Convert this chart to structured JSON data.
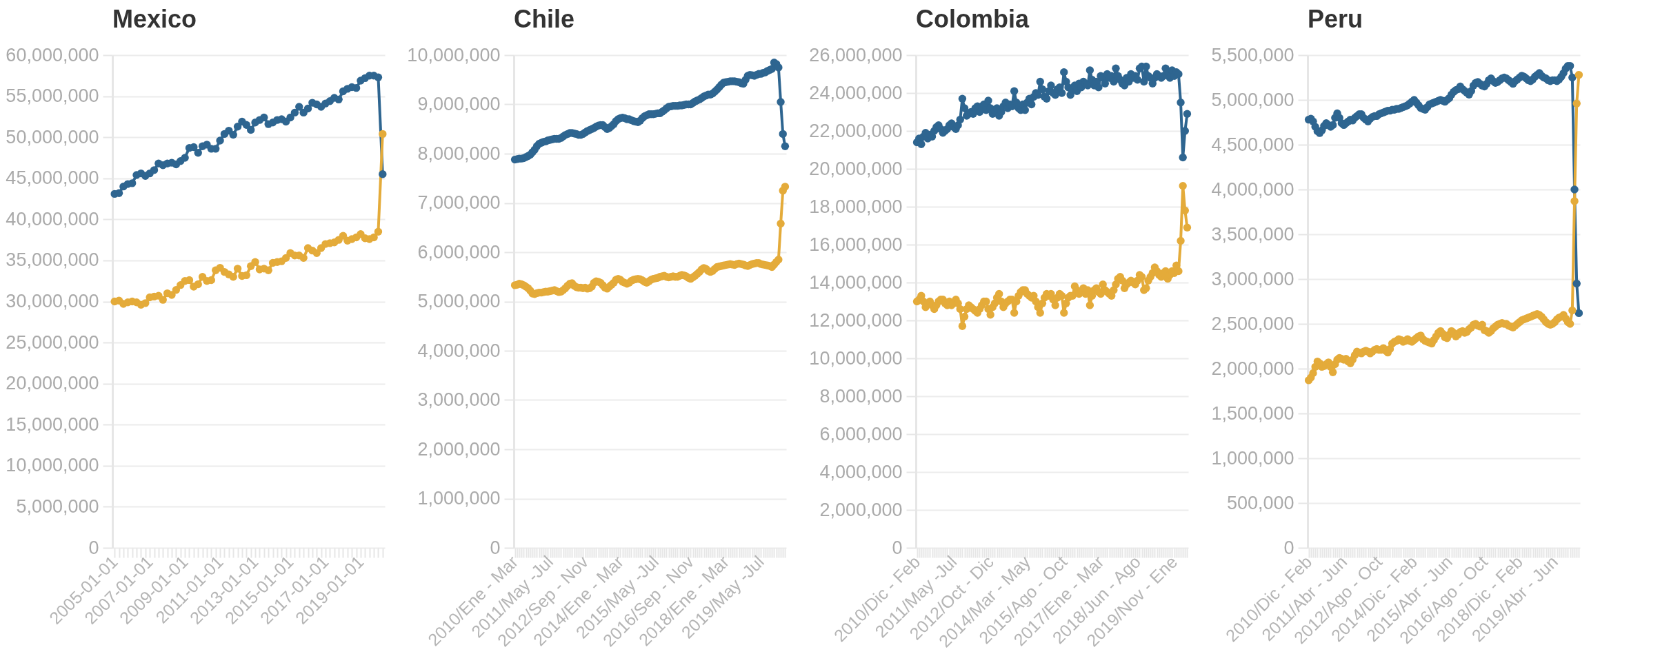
{
  "chart_data": [
    {
      "type": "line",
      "title": "Mexico",
      "marker": "circle",
      "grid": "y",
      "ylim": [
        0,
        60000000
      ],
      "yticks": [
        {
          "value": 0,
          "label": "0"
        },
        {
          "value": 5000000,
          "label": "5,000,000"
        },
        {
          "value": 10000000,
          "label": "10,000,000"
        },
        {
          "value": 15000000,
          "label": "15,000,000"
        },
        {
          "value": 20000000,
          "label": "20,000,000"
        },
        {
          "value": 25000000,
          "label": "25,000,000"
        },
        {
          "value": 30000000,
          "label": "30,000,000"
        },
        {
          "value": 35000000,
          "label": "35,000,000"
        },
        {
          "value": 40000000,
          "label": "40,000,000"
        },
        {
          "value": 45000000,
          "label": "45,000,000"
        },
        {
          "value": 50000000,
          "label": "50,000,000"
        },
        {
          "value": 55000000,
          "label": "55,000,000"
        },
        {
          "value": 60000000,
          "label": "60,000,000"
        }
      ],
      "categories": [
        "2005-01-01",
        null,
        null,
        null,
        null,
        null,
        null,
        null,
        "2007-01-01",
        null,
        null,
        null,
        null,
        null,
        null,
        null,
        "2009-01-01",
        null,
        null,
        null,
        null,
        null,
        null,
        null,
        "2011-01-01",
        null,
        null,
        null,
        null,
        null,
        null,
        null,
        "2013-01-01",
        null,
        null,
        null,
        null,
        null,
        null,
        null,
        "2015-01-01",
        null,
        null,
        null,
        null,
        null,
        null,
        null,
        "2017-01-01",
        null,
        null,
        null,
        null,
        null,
        null,
        null,
        "2019-01-01",
        null,
        null,
        null,
        null,
        null
      ],
      "series": [
        {
          "color": "#2e6590",
          "values": [
            43100000.0,
            43200000.0,
            44000000.0,
            44300000.0,
            44400000.0,
            45400000.0,
            45600000.0,
            45300000.0,
            45600000.0,
            46000000.0,
            46800000.0,
            46600000.0,
            46800000.0,
            46900000.0,
            46700000.0,
            47100000.0,
            47500000.0,
            48700000.0,
            48800000.0,
            48100000.0,
            48900000.0,
            49100000.0,
            48600000.0,
            48600000.0,
            49600000.0,
            50400000.0,
            50800000.0,
            50300000.0,
            51300000.0,
            51900000.0,
            51500000.0,
            50900000.0,
            51800000.0,
            52100000.0,
            52400000.0,
            51600000.0,
            51800000.0,
            52100000.0,
            52200000.0,
            51900000.0,
            52400000.0,
            53000000.0,
            53700000.0,
            53000000.0,
            53500000.0,
            54200000.0,
            54000000.0,
            53700000.0,
            54100000.0,
            54400000.0,
            54800000.0,
            54600000.0,
            55600000.0,
            55900000.0,
            56100000.0,
            56000000.0,
            56900000.0,
            57200000.0,
            57500000.0,
            57500000.0,
            57300000.0,
            45500000.0
          ]
        },
        {
          "color": "#e4ab3a",
          "values": [
            30000000.0,
            30100000.0,
            29700000.0,
            29900000.0,
            30000000.0,
            29900000.0,
            29600000.0,
            29800000.0,
            30500000.0,
            30600000.0,
            30700000.0,
            30200000.0,
            31000000.0,
            30800000.0,
            31400000.0,
            32000000.0,
            32500000.0,
            32600000.0,
            31800000.0,
            32100000.0,
            33000000.0,
            32500000.0,
            32600000.0,
            33800000.0,
            34100000.0,
            33600000.0,
            33300000.0,
            33000000.0,
            34000000.0,
            33100000.0,
            33200000.0,
            34300000.0,
            34800000.0,
            33900000.0,
            34000000.0,
            33800000.0,
            34700000.0,
            34800000.0,
            34900000.0,
            35300000.0,
            35900000.0,
            35600000.0,
            35600000.0,
            35300000.0,
            36500000.0,
            36200000.0,
            35900000.0,
            36500000.0,
            37000000.0,
            37100000.0,
            37200000.0,
            37500000.0,
            38000000.0,
            37400000.0,
            37600000.0,
            37800000.0,
            38200000.0,
            37700000.0,
            37600000.0,
            37800000.0,
            38500000.0,
            50400000.0
          ]
        }
      ]
    },
    {
      "type": "line",
      "title": "Chile",
      "marker": "circle",
      "grid": "y",
      "ylim": [
        0,
        10000000
      ],
      "yticks": [
        {
          "value": 0,
          "label": "0"
        },
        {
          "value": 1000000,
          "label": "1,000,000"
        },
        {
          "value": 2000000,
          "label": "2,000,000"
        },
        {
          "value": 3000000,
          "label": "3,000,000"
        },
        {
          "value": 4000000,
          "label": "4,000,000"
        },
        {
          "value": 5000000,
          "label": "5,000,000"
        },
        {
          "value": 6000000,
          "label": "6,000,000"
        },
        {
          "value": 7000000,
          "label": "7,000,000"
        },
        {
          "value": 8000000,
          "label": "8,000,000"
        },
        {
          "value": 9000000,
          "label": "9,000,000"
        },
        {
          "value": 10000000,
          "label": "10,000,000"
        }
      ],
      "categories": [
        "2010/Ene - Mar",
        null,
        null,
        null,
        null,
        null,
        null,
        null,
        null,
        null,
        null,
        null,
        null,
        null,
        null,
        null,
        "2011/May -Jul",
        null,
        null,
        null,
        null,
        null,
        null,
        null,
        null,
        null,
        null,
        null,
        null,
        null,
        null,
        null,
        "2012/Sep - Nov",
        null,
        null,
        null,
        null,
        null,
        null,
        null,
        null,
        null,
        null,
        null,
        null,
        null,
        null,
        null,
        "2014/Ene - Mar",
        null,
        null,
        null,
        null,
        null,
        null,
        null,
        null,
        null,
        null,
        null,
        null,
        null,
        null,
        null,
        "2015/May -Jul",
        null,
        null,
        null,
        null,
        null,
        null,
        null,
        null,
        null,
        null,
        null,
        null,
        null,
        null,
        null,
        "2016/Sep - Nov",
        null,
        null,
        null,
        null,
        null,
        null,
        null,
        null,
        null,
        null,
        null,
        null,
        null,
        null,
        null,
        "2018/Ene - Mar",
        null,
        null,
        null,
        null,
        null,
        null,
        null,
        null,
        null,
        null,
        null,
        null,
        null,
        null,
        null,
        "2019/May -Jul",
        null,
        null,
        null,
        null,
        null,
        null,
        null,
        null,
        null,
        null,
        null
      ],
      "series": [
        {
          "color": "#2e6590",
          "values": [
            7880000.0,
            7890000.0,
            7900000.0,
            7900000.0,
            7910000.0,
            7930000.0,
            7950000.0,
            7980000.0,
            8030000.0,
            8080000.0,
            8150000.0,
            8200000.0,
            8220000.0,
            8240000.0,
            8250000.0,
            8270000.0,
            8280000.0,
            8290000.0,
            8300000.0,
            8300000.0,
            8300000.0,
            8320000.0,
            8350000.0,
            8380000.0,
            8400000.0,
            8420000.0,
            8420000.0,
            8410000.0,
            8400000.0,
            8380000.0,
            8380000.0,
            8400000.0,
            8430000.0,
            8460000.0,
            8480000.0,
            8500000.0,
            8520000.0,
            8550000.0,
            8570000.0,
            8580000.0,
            8580000.0,
            8540000.0,
            8500000.0,
            8520000.0,
            8560000.0,
            8600000.0,
            8660000.0,
            8700000.0,
            8720000.0,
            8730000.0,
            8720000.0,
            8700000.0,
            8700000.0,
            8680000.0,
            8660000.0,
            8650000.0,
            8640000.0,
            8670000.0,
            8720000.0,
            8760000.0,
            8780000.0,
            8800000.0,
            8800000.0,
            8800000.0,
            8810000.0,
            8820000.0,
            8820000.0,
            8850000.0,
            8880000.0,
            8920000.0,
            8950000.0,
            8960000.0,
            8970000.0,
            8970000.0,
            8970000.0,
            8980000.0,
            8980000.0,
            8990000.0,
            9000000.0,
            9000000.0,
            9000000.0,
            9030000.0,
            9060000.0,
            9080000.0,
            9100000.0,
            9130000.0,
            9160000.0,
            9180000.0,
            9200000.0,
            9200000.0,
            9220000.0,
            9260000.0,
            9300000.0,
            9350000.0,
            9400000.0,
            9440000.0,
            9450000.0,
            9460000.0,
            9470000.0,
            9470000.0,
            9470000.0,
            9460000.0,
            9450000.0,
            9430000.0,
            9420000.0,
            9500000.0,
            9580000.0,
            9600000.0,
            9590000.0,
            9580000.0,
            9600000.0,
            9620000.0,
            9620000.0,
            9640000.0,
            9650000.0,
            9680000.0,
            9700000.0,
            9720000.0,
            9850000.0,
            9820000.0,
            9750000.0,
            9050000.0,
            8400000.0,
            8150000.0
          ]
        },
        {
          "color": "#e4ab3a",
          "values": [
            5330000.0,
            5340000.0,
            5360000.0,
            5350000.0,
            5330000.0,
            5300000.0,
            5270000.0,
            5220000.0,
            5160000.0,
            5150000.0,
            5170000.0,
            5180000.0,
            5180000.0,
            5190000.0,
            5200000.0,
            5200000.0,
            5210000.0,
            5220000.0,
            5230000.0,
            5210000.0,
            5190000.0,
            5200000.0,
            5230000.0,
            5270000.0,
            5320000.0,
            5360000.0,
            5370000.0,
            5320000.0,
            5290000.0,
            5280000.0,
            5280000.0,
            5270000.0,
            5280000.0,
            5260000.0,
            5270000.0,
            5300000.0,
            5380000.0,
            5410000.0,
            5400000.0,
            5380000.0,
            5330000.0,
            5280000.0,
            5260000.0,
            5300000.0,
            5340000.0,
            5380000.0,
            5440000.0,
            5460000.0,
            5440000.0,
            5400000.0,
            5380000.0,
            5360000.0,
            5380000.0,
            5420000.0,
            5440000.0,
            5450000.0,
            5460000.0,
            5450000.0,
            5430000.0,
            5400000.0,
            5380000.0,
            5410000.0,
            5440000.0,
            5460000.0,
            5470000.0,
            5480000.0,
            5500000.0,
            5510000.0,
            5520000.0,
            5500000.0,
            5490000.0,
            5500000.0,
            5510000.0,
            5500000.0,
            5500000.0,
            5520000.0,
            5540000.0,
            5530000.0,
            5510000.0,
            5480000.0,
            5460000.0,
            5490000.0,
            5520000.0,
            5560000.0,
            5600000.0,
            5650000.0,
            5680000.0,
            5660000.0,
            5620000.0,
            5600000.0,
            5620000.0,
            5660000.0,
            5700000.0,
            5710000.0,
            5720000.0,
            5730000.0,
            5740000.0,
            5750000.0,
            5760000.0,
            5750000.0,
            5740000.0,
            5760000.0,
            5770000.0,
            5760000.0,
            5750000.0,
            5730000.0,
            5720000.0,
            5740000.0,
            5760000.0,
            5770000.0,
            5780000.0,
            5780000.0,
            5760000.0,
            5750000.0,
            5740000.0,
            5730000.0,
            5720000.0,
            5700000.0,
            5750000.0,
            5800000.0,
            5850000.0,
            6580000.0,
            7250000.0,
            7330000.0
          ]
        }
      ]
    },
    {
      "type": "line",
      "title": "Colombia",
      "marker": "circle",
      "grid": "y",
      "ylim": [
        0,
        26000000
      ],
      "yticks": [
        {
          "value": 0,
          "label": "0"
        },
        {
          "value": 2000000,
          "label": "2,000,000"
        },
        {
          "value": 4000000,
          "label": "4,000,000"
        },
        {
          "value": 6000000,
          "label": "6,000,000"
        },
        {
          "value": 8000000,
          "label": "8,000,000"
        },
        {
          "value": 10000000,
          "label": "10,000,000"
        },
        {
          "value": 12000000,
          "label": "12,000,000"
        },
        {
          "value": 14000000,
          "label": "14,000,000"
        },
        {
          "value": 16000000,
          "label": "16,000,000"
        },
        {
          "value": 18000000,
          "label": "18,000,000"
        },
        {
          "value": 20000000,
          "label": "20,000,000"
        },
        {
          "value": 22000000,
          "label": "22,000,000"
        },
        {
          "value": 24000000,
          "label": "24,000,000"
        },
        {
          "value": 26000000,
          "label": "26,000,000"
        }
      ],
      "categories": [
        "2010/Dic - Feb",
        null,
        null,
        null,
        null,
        null,
        null,
        null,
        null,
        null,
        null,
        null,
        null,
        null,
        null,
        null,
        null,
        "2011/May -Jul",
        null,
        null,
        null,
        null,
        null,
        null,
        null,
        null,
        null,
        null,
        null,
        null,
        null,
        null,
        null,
        null,
        "2012/Oct - Dic",
        null,
        null,
        null,
        null,
        null,
        null,
        null,
        null,
        null,
        null,
        null,
        null,
        null,
        null,
        null,
        null,
        "2014/Mar - May",
        null,
        null,
        null,
        null,
        null,
        null,
        null,
        null,
        null,
        null,
        null,
        null,
        null,
        null,
        null,
        null,
        "2015/Ago - Oct",
        null,
        null,
        null,
        null,
        null,
        null,
        null,
        null,
        null,
        null,
        null,
        null,
        null,
        null,
        null,
        null,
        "2017/Ene - Mar",
        null,
        null,
        null,
        null,
        null,
        null,
        null,
        null,
        null,
        null,
        null,
        null,
        null,
        null,
        null,
        null,
        "2018/Jun - Ago",
        null,
        null,
        null,
        null,
        null,
        null,
        null,
        null,
        null,
        null,
        null,
        null,
        null,
        null,
        null,
        null,
        "2019/Nov - Ene",
        null,
        null,
        null,
        null,
        null,
        null
      ],
      "series": [
        {
          "color": "#2e6590",
          "values": [
            21400000.0,
            21600000.0,
            21300000.0,
            21700000.0,
            21900000.0,
            21600000.0,
            21800000.0,
            21700000.0,
            22000000.0,
            22200000.0,
            22300000.0,
            22100000.0,
            21900000.0,
            22000000.0,
            22100000.0,
            22300000.0,
            22400000.0,
            22200000.0,
            22100000.0,
            22300000.0,
            22600000.0,
            23700000.0,
            23200000.0,
            22800000.0,
            22900000.0,
            23000000.0,
            22900000.0,
            23200000.0,
            23300000.0,
            23000000.0,
            23300000.0,
            23400000.0,
            23100000.0,
            23600000.0,
            23200000.0,
            22900000.0,
            23100000.0,
            23200000.0,
            22800000.0,
            23000000.0,
            23300000.0,
            23500000.0,
            23200000.0,
            23400000.0,
            23300000.0,
            24100000.0,
            23500000.0,
            23200000.0,
            23100000.0,
            23400000.0,
            23100000.0,
            23500000.0,
            23700000.0,
            23400000.0,
            23800000.0,
            24000000.0,
            23900000.0,
            24600000.0,
            24200000.0,
            23800000.0,
            23700000.0,
            24100000.0,
            24400000.0,
            24000000.0,
            23900000.0,
            24200000.0,
            24300000.0,
            24000000.0,
            25100000.0,
            24600000.0,
            24300000.0,
            23900000.0,
            24200000.0,
            24400000.0,
            24100000.0,
            24500000.0,
            24300000.0,
            24600000.0,
            24500000.0,
            24400000.0,
            25200000.0,
            24700000.0,
            24400000.0,
            24600000.0,
            24300000.0,
            24900000.0,
            24800000.0,
            24500000.0,
            25000000.0,
            24800000.0,
            24900000.0,
            24600000.0,
            25300000.0,
            24900000.0,
            24700000.0,
            24500000.0,
            24400000.0,
            24800000.0,
            24600000.0,
            25000000.0,
            24800000.0,
            24900000.0,
            24700000.0,
            25300000.0,
            25400000.0,
            24600000.0,
            25400000.0,
            24900000.0,
            24800000.0,
            24500000.0,
            24800000.0,
            25000000.0,
            24900000.0,
            24800000.0,
            24900000.0,
            25300000.0,
            25100000.0,
            24800000.0,
            25200000.0,
            24900000.0,
            25100000.0,
            25000000.0,
            23500000.0,
            20600000.0,
            22000000.0,
            22900000.0
          ]
        },
        {
          "color": "#e4ab3a",
          "values": [
            13000000.0,
            13100000.0,
            13300000.0,
            13000000.0,
            12700000.0,
            12900000.0,
            13000000.0,
            12800000.0,
            12600000.0,
            12800000.0,
            13000000.0,
            13100000.0,
            13100000.0,
            12900000.0,
            12800000.0,
            13000000.0,
            12800000.0,
            12900000.0,
            13100000.0,
            12900000.0,
            12600000.0,
            11700000.0,
            12200000.0,
            12600000.0,
            12800000.0,
            12700000.0,
            12600000.0,
            12500000.0,
            12400000.0,
            12600000.0,
            12800000.0,
            13000000.0,
            13000000.0,
            12600000.0,
            12300000.0,
            12700000.0,
            12900000.0,
            13200000.0,
            13400000.0,
            13000000.0,
            12700000.0,
            12900000.0,
            13000000.0,
            13100000.0,
            13100000.0,
            12400000.0,
            13000000.0,
            13300000.0,
            13500000.0,
            13600000.0,
            13600000.0,
            13400000.0,
            13300000.0,
            13200000.0,
            13300000.0,
            13000000.0,
            12700000.0,
            12400000.0,
            12900000.0,
            13200000.0,
            13400000.0,
            13300000.0,
            13400000.0,
            13100000.0,
            12800000.0,
            13200000.0,
            13400000.0,
            13300000.0,
            12400000.0,
            12900000.0,
            13200000.0,
            13300000.0,
            13300000.0,
            13800000.0,
            13600000.0,
            13400000.0,
            13500000.0,
            13700000.0,
            13400000.0,
            13600000.0,
            12800000.0,
            13300000.0,
            13600000.0,
            13700000.0,
            13500000.0,
            13400000.0,
            13900000.0,
            13600000.0,
            13500000.0,
            13400000.0,
            13300000.0,
            13600000.0,
            13900000.0,
            14200000.0,
            14300000.0,
            14100000.0,
            13700000.0,
            13900000.0,
            14000000.0,
            14100000.0,
            14000000.0,
            13900000.0,
            14100000.0,
            14400000.0,
            14300000.0,
            13600000.0,
            13700000.0,
            14100000.0,
            14300000.0,
            14500000.0,
            14800000.0,
            14600000.0,
            14400000.0,
            14300000.0,
            14500000.0,
            14600000.0,
            14200000.0,
            14400000.0,
            14600000.0,
            14500000.0,
            14900000.0,
            14600000.0,
            16200000.0,
            19100000.0,
            17800000.0,
            16900000.0
          ]
        }
      ]
    },
    {
      "type": "line",
      "title": "Peru",
      "marker": "circle",
      "grid": "y",
      "ylim": [
        0,
        5500000
      ],
      "yticks": [
        {
          "value": 0,
          "label": "0"
        },
        {
          "value": 500000,
          "label": "500,000"
        },
        {
          "value": 1000000,
          "label": "1,000,000"
        },
        {
          "value": 1500000,
          "label": "1,500,000"
        },
        {
          "value": 2000000,
          "label": "2,000,000"
        },
        {
          "value": 2500000,
          "label": "2,500,000"
        },
        {
          "value": 3000000,
          "label": "3,000,000"
        },
        {
          "value": 3500000,
          "label": "3,500,000"
        },
        {
          "value": 4000000,
          "label": "4,000,000"
        },
        {
          "value": 4500000,
          "label": "4,500,000"
        },
        {
          "value": 5000000,
          "label": "5,000,000"
        },
        {
          "value": 5500000,
          "label": "5,500,000"
        }
      ],
      "categories": [
        "2010/Dic - Feb",
        null,
        null,
        null,
        null,
        null,
        null,
        null,
        null,
        null,
        null,
        null,
        null,
        null,
        null,
        null,
        "2011/Abr - Jun",
        null,
        null,
        null,
        null,
        null,
        null,
        null,
        null,
        null,
        null,
        null,
        null,
        null,
        null,
        null,
        "2012/Ago - Oct",
        null,
        null,
        null,
        null,
        null,
        null,
        null,
        null,
        null,
        null,
        null,
        null,
        null,
        null,
        null,
        "2014/Dic - Feb",
        null,
        null,
        null,
        null,
        null,
        null,
        null,
        null,
        null,
        null,
        null,
        null,
        null,
        null,
        null,
        "2015/Abr - Jun",
        null,
        null,
        null,
        null,
        null,
        null,
        null,
        null,
        null,
        null,
        null,
        null,
        null,
        null,
        null,
        "2016/Ago - Oct",
        null,
        null,
        null,
        null,
        null,
        null,
        null,
        null,
        null,
        null,
        null,
        null,
        null,
        null,
        null,
        "2018/Dic - Feb",
        null,
        null,
        null,
        null,
        null,
        null,
        null,
        null,
        null,
        null,
        null,
        null,
        null,
        null,
        null,
        "2019/Abr - Jun",
        null,
        null,
        null,
        null,
        null,
        null,
        null,
        null,
        null,
        null,
        null
      ],
      "series": [
        {
          "color": "#2e6590",
          "values": [
            4780000.0,
            4790000.0,
            4760000.0,
            4700000.0,
            4650000.0,
            4630000.0,
            4660000.0,
            4710000.0,
            4740000.0,
            4720000.0,
            4700000.0,
            4720000.0,
            4800000.0,
            4850000.0,
            4800000.0,
            4740000.0,
            4720000.0,
            4740000.0,
            4760000.0,
            4780000.0,
            4770000.0,
            4800000.0,
            4820000.0,
            4840000.0,
            4840000.0,
            4800000.0,
            4780000.0,
            4760000.0,
            4790000.0,
            4810000.0,
            4820000.0,
            4820000.0,
            4840000.0,
            4850000.0,
            4860000.0,
            4870000.0,
            4880000.0,
            4880000.0,
            4890000.0,
            4890000.0,
            4900000.0,
            4900000.0,
            4910000.0,
            4920000.0,
            4930000.0,
            4940000.0,
            4960000.0,
            4980000.0,
            5000000.0,
            4970000.0,
            4940000.0,
            4910000.0,
            4900000.0,
            4890000.0,
            4920000.0,
            4950000.0,
            4960000.0,
            4970000.0,
            4980000.0,
            4990000.0,
            5000000.0,
            4990000.0,
            4980000.0,
            5000000.0,
            5020000.0,
            5060000.0,
            5090000.0,
            5110000.0,
            5120000.0,
            5150000.0,
            5120000.0,
            5100000.0,
            5080000.0,
            5060000.0,
            5100000.0,
            5160000.0,
            5190000.0,
            5200000.0,
            5180000.0,
            5160000.0,
            5150000.0,
            5180000.0,
            5220000.0,
            5240000.0,
            5210000.0,
            5190000.0,
            5200000.0,
            5220000.0,
            5240000.0,
            5250000.0,
            5240000.0,
            5220000.0,
            5200000.0,
            5180000.0,
            5210000.0,
            5230000.0,
            5250000.0,
            5270000.0,
            5260000.0,
            5240000.0,
            5220000.0,
            5210000.0,
            5230000.0,
            5260000.0,
            5280000.0,
            5300000.0,
            5270000.0,
            5250000.0,
            5240000.0,
            5220000.0,
            5210000.0,
            5220000.0,
            5220000.0,
            5210000.0,
            5230000.0,
            5260000.0,
            5300000.0,
            5350000.0,
            5380000.0,
            5380000.0,
            5250000.0,
            4000000.0,
            2950000.0,
            2620000.0
          ]
        },
        {
          "color": "#e4ab3a",
          "values": [
            1870000.0,
            1900000.0,
            1950000.0,
            2020000.0,
            2080000.0,
            2060000.0,
            2020000.0,
            2030000.0,
            2050000.0,
            2070000.0,
            2020000.0,
            1960000.0,
            2050000.0,
            2100000.0,
            2120000.0,
            2110000.0,
            2100000.0,
            2110000.0,
            2080000.0,
            2060000.0,
            2100000.0,
            2150000.0,
            2190000.0,
            2180000.0,
            2170000.0,
            2190000.0,
            2200000.0,
            2190000.0,
            2170000.0,
            2190000.0,
            2210000.0,
            2220000.0,
            2210000.0,
            2210000.0,
            2230000.0,
            2200000.0,
            2180000.0,
            2220000.0,
            2280000.0,
            2300000.0,
            2310000.0,
            2330000.0,
            2320000.0,
            2300000.0,
            2310000.0,
            2330000.0,
            2310000.0,
            2300000.0,
            2320000.0,
            2340000.0,
            2360000.0,
            2370000.0,
            2330000.0,
            2310000.0,
            2300000.0,
            2290000.0,
            2280000.0,
            2320000.0,
            2360000.0,
            2400000.0,
            2420000.0,
            2390000.0,
            2350000.0,
            2340000.0,
            2380000.0,
            2420000.0,
            2400000.0,
            2360000.0,
            2380000.0,
            2410000.0,
            2420000.0,
            2400000.0,
            2410000.0,
            2440000.0,
            2460000.0,
            2490000.0,
            2500000.0,
            2480000.0,
            2470000.0,
            2490000.0,
            2430000.0,
            2420000.0,
            2400000.0,
            2420000.0,
            2450000.0,
            2470000.0,
            2490000.0,
            2500000.0,
            2510000.0,
            2500000.0,
            2500000.0,
            2480000.0,
            2470000.0,
            2460000.0,
            2480000.0,
            2500000.0,
            2520000.0,
            2540000.0,
            2550000.0,
            2560000.0,
            2570000.0,
            2580000.0,
            2590000.0,
            2600000.0,
            2610000.0,
            2600000.0,
            2580000.0,
            2550000.0,
            2520000.0,
            2500000.0,
            2490000.0,
            2500000.0,
            2520000.0,
            2550000.0,
            2570000.0,
            2580000.0,
            2600000.0,
            2560000.0,
            2520000.0,
            2500000.0,
            2650000.0,
            3870000.0,
            4960000.0,
            5280000.0
          ]
        }
      ]
    }
  ]
}
